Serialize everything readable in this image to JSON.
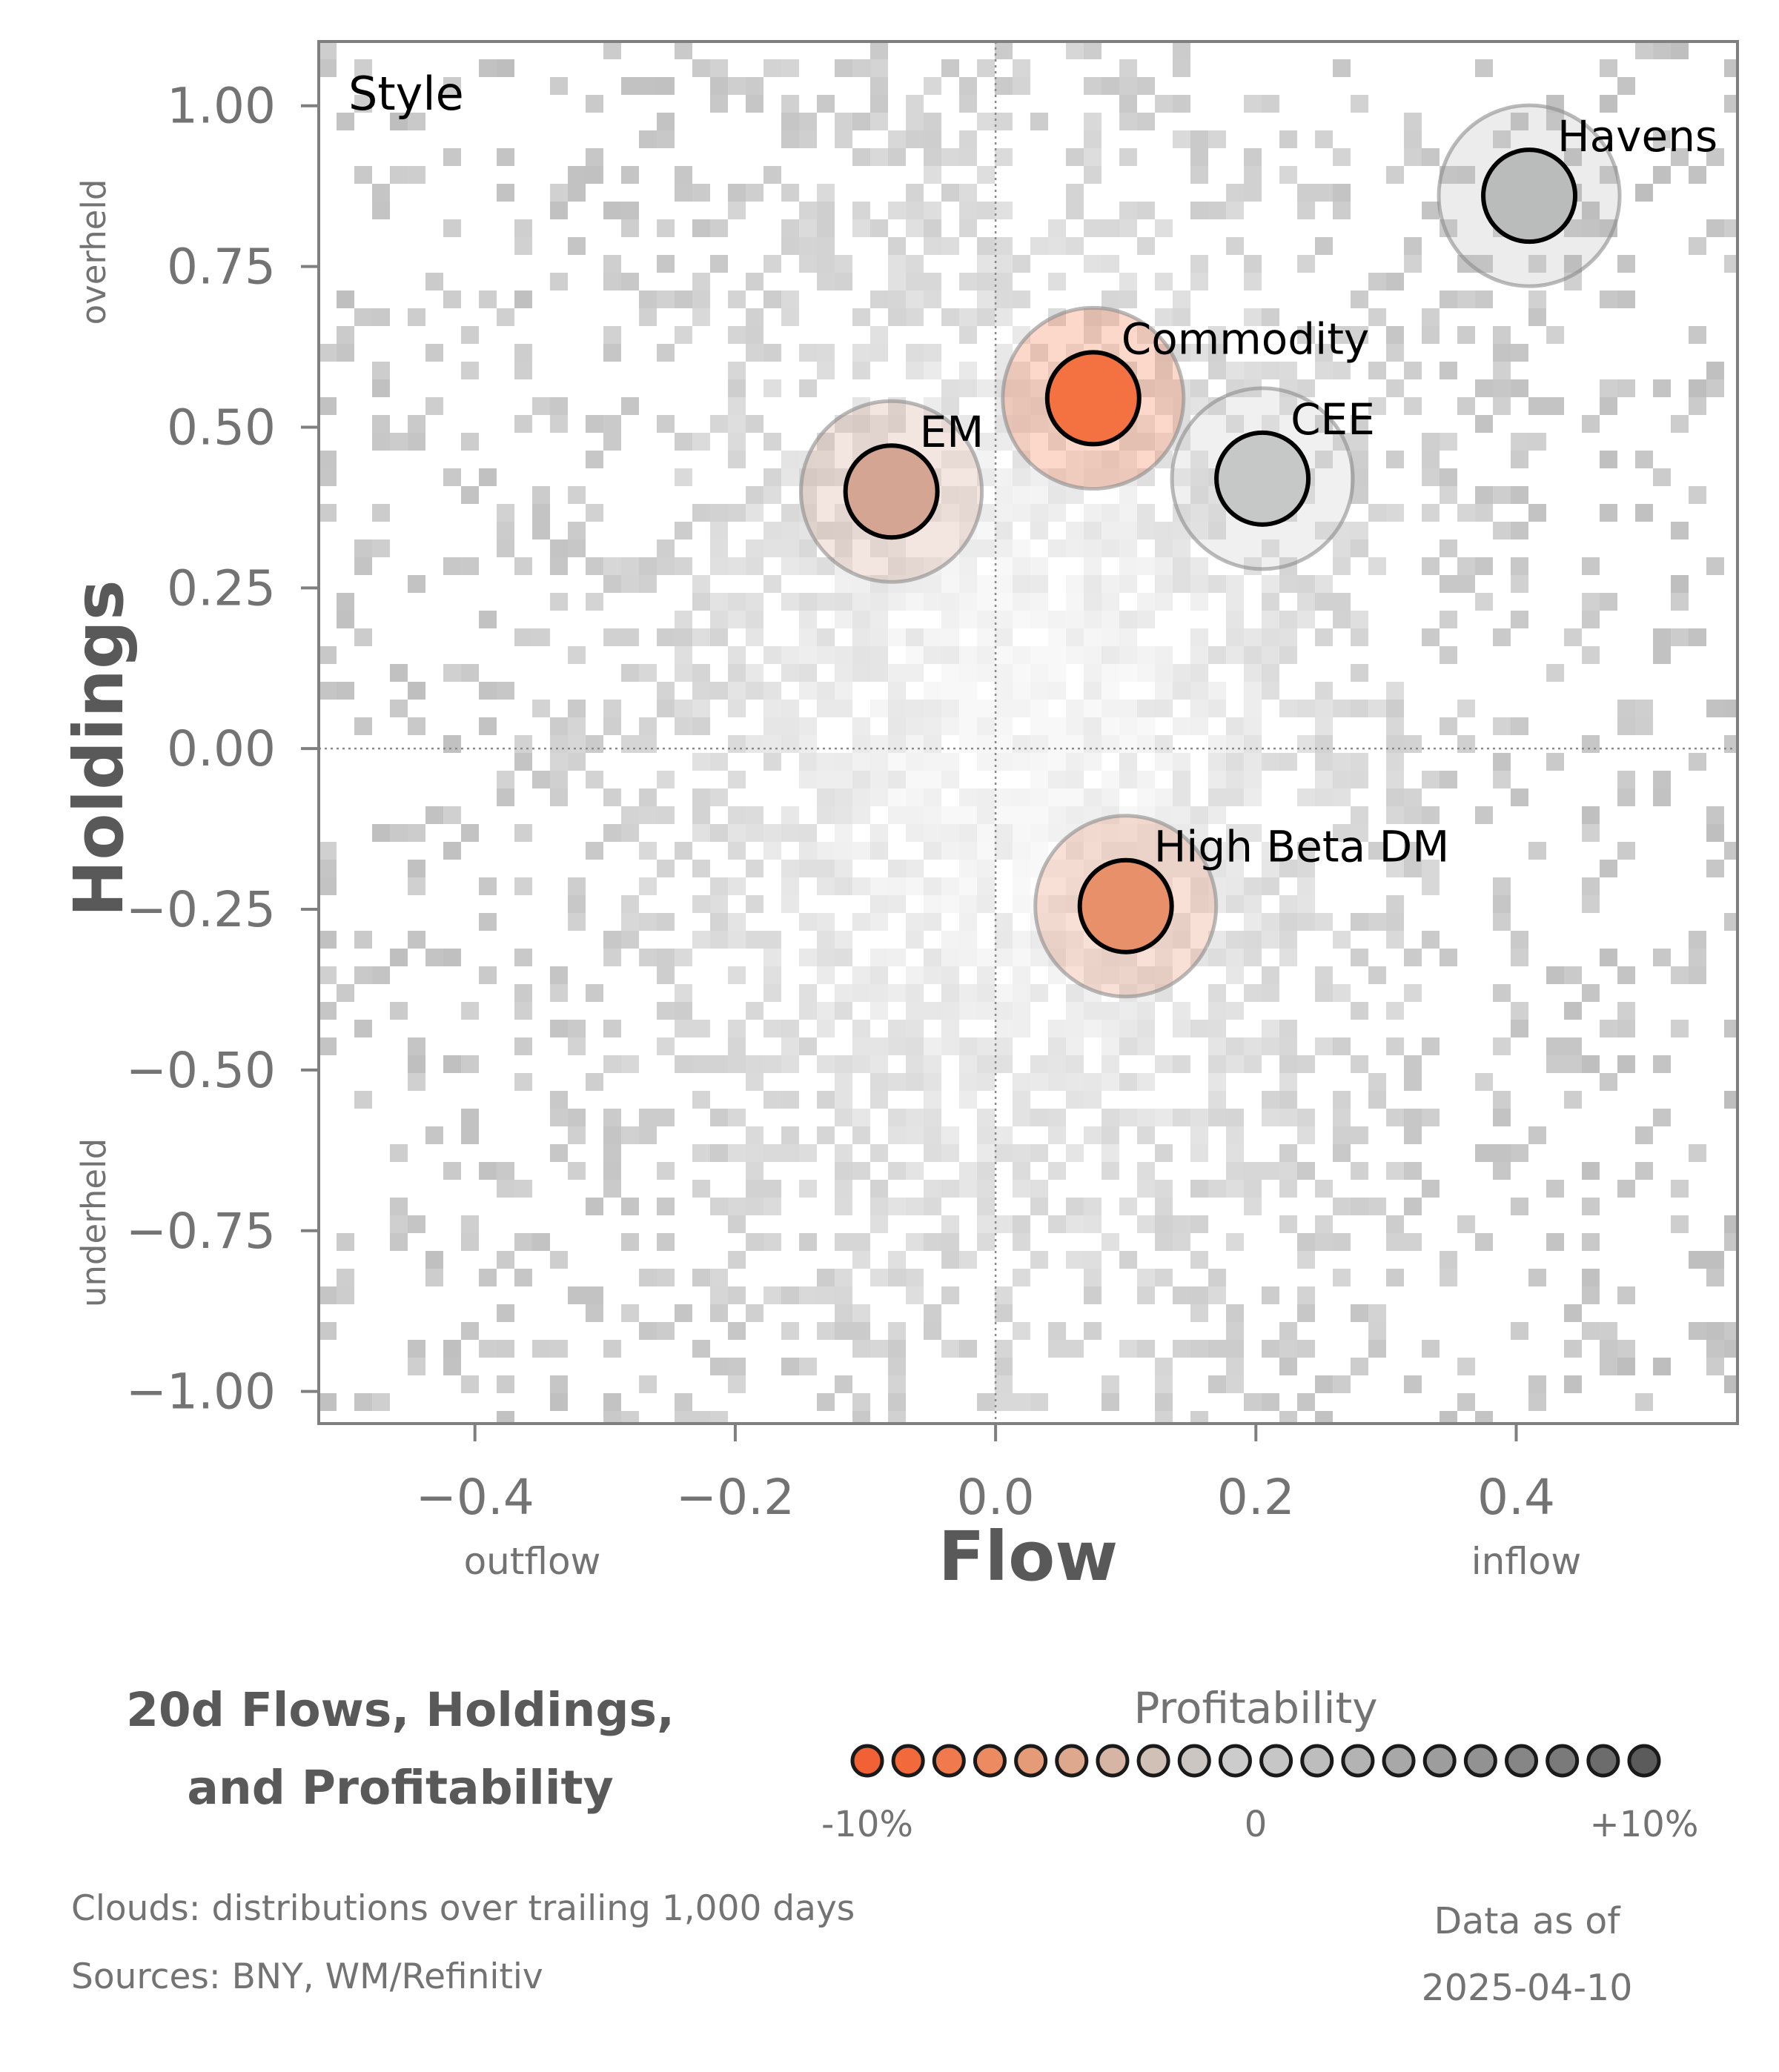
{
  "chart_data": {
    "type": "scatter",
    "panel_label": "Style",
    "xlabel": "Flow",
    "ylabel": "Holdings",
    "x_direction_labels": {
      "left": "outflow",
      "right": "inflow"
    },
    "y_direction_labels": {
      "top": "overheld",
      "bottom": "underheld"
    },
    "xlim": [
      -0.52,
      0.57
    ],
    "ylim": [
      -1.05,
      1.1
    ],
    "xticks": [
      -0.4,
      -0.2,
      0.0,
      0.2,
      0.4
    ],
    "xtick_labels": [
      "−0.4",
      "−0.2",
      "0.0",
      "0.2",
      "0.4"
    ],
    "yticks": [
      1.0,
      0.75,
      0.5,
      0.25,
      0.0,
      -0.25,
      -0.5,
      -0.75,
      -1.0
    ],
    "ytick_labels": [
      "1.00",
      "0.75",
      "0.50",
      "0.25",
      "0.00",
      "−0.25",
      "−0.50",
      "−0.75",
      "−1.00"
    ],
    "reference_lines": {
      "x": 0.0,
      "y": 0.0,
      "style": "dotted"
    },
    "background": "grey 2D histogram clouds of trailing distributions",
    "points": [
      {
        "label": "Havens",
        "x": 0.41,
        "y": 0.86,
        "color": "#b9bcbb"
      },
      {
        "label": "Commodity",
        "x": 0.075,
        "y": 0.545,
        "color": "#f47242"
      },
      {
        "label": "EM",
        "x": -0.08,
        "y": 0.4,
        "color": "#d4a592"
      },
      {
        "label": "CEE",
        "x": 0.205,
        "y": 0.42,
        "color": "#c6c8c7"
      },
      {
        "label": "High Beta DM",
        "x": 0.1,
        "y": -0.245,
        "color": "#e8906a"
      }
    ],
    "legend": {
      "title": "Profitability",
      "min_label": "-10%",
      "mid_label": "0",
      "max_label": "+10%",
      "colors": [
        "#f26035",
        "#f26a3c",
        "#f07a4e",
        "#ec8a62",
        "#e59a78",
        "#dda88e",
        "#d6b5a4",
        "#d0c0b5",
        "#ccc6c2",
        "#cccccc",
        "#c6c6c6",
        "#bdbdbd",
        "#b3b3b3",
        "#a8a8a8",
        "#9d9d9d",
        "#929292",
        "#868686",
        "#7a7a7a",
        "#6c6c6c",
        "#5b5b5b"
      ]
    }
  },
  "title_lines": [
    "20d Flows, Holdings,",
    "and Profitability"
  ],
  "notes": [
    "Clouds:  distributions over trailing 1,000 days",
    "Sources:  BNY, WM/Refinitiv"
  ],
  "asof_lines": [
    "Data as of",
    "2025-04-10"
  ]
}
